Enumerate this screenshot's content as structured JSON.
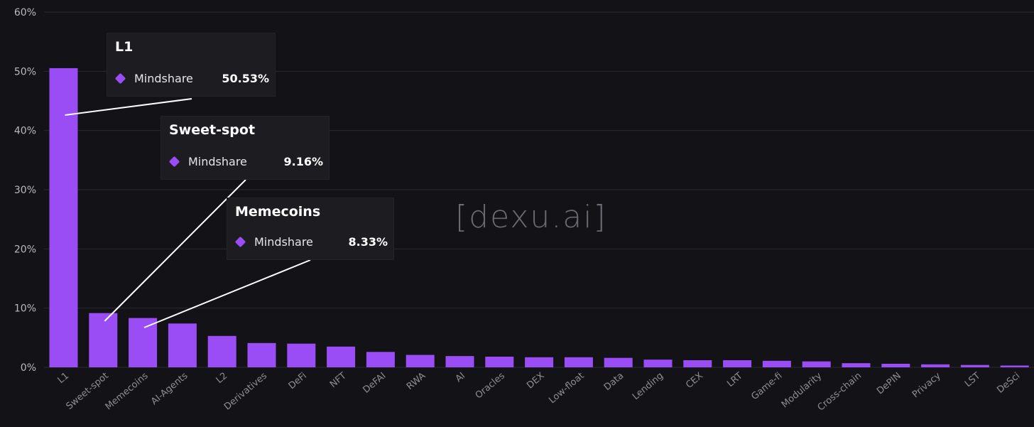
{
  "chart_data": {
    "type": "bar",
    "title": "",
    "xlabel": "",
    "ylabel": "",
    "ylim": [
      0,
      60
    ],
    "y_ticks": [
      "0%",
      "10%",
      "20%",
      "30%",
      "40%",
      "50%",
      "60%"
    ],
    "grid": true,
    "categories": [
      "L1",
      "Sweet-spot",
      "Memecoins",
      "AI-Agents",
      "L2",
      "Derivatives",
      "DeFi",
      "NFT",
      "DeFAI",
      "RWA",
      "AI",
      "Oracles",
      "DEX",
      "Low-float",
      "Data",
      "Lending",
      "CEX",
      "LRT",
      "Game-fi",
      "Modularity",
      "Cross-chain",
      "DePIN",
      "Privacy",
      "LST",
      "DeSci"
    ],
    "series": [
      {
        "values": [
          50.53,
          9.16,
          8.33,
          7.4,
          5.3,
          4.1,
          4.0,
          3.5,
          2.6,
          2.1,
          1.9,
          1.8,
          1.7,
          1.7,
          1.6,
          1.3,
          1.2,
          1.2,
          1.1,
          1.0,
          0.7,
          0.6,
          0.5,
          0.4,
          0.3
        ]
      }
    ],
    "colors": {
      "bar": "#9b4df5",
      "background": "#121217",
      "grid": "#2a2a31"
    },
    "tooltips": [
      {
        "category": "L1",
        "series": "Mindshare",
        "value": "50.53%"
      },
      {
        "category": "Sweet-spot",
        "series": "Mindshare",
        "value": "9.16%"
      },
      {
        "category": "Memecoins",
        "series": "Mindshare",
        "value": "8.33%"
      }
    ],
    "watermark": "[dexu.ai]"
  }
}
